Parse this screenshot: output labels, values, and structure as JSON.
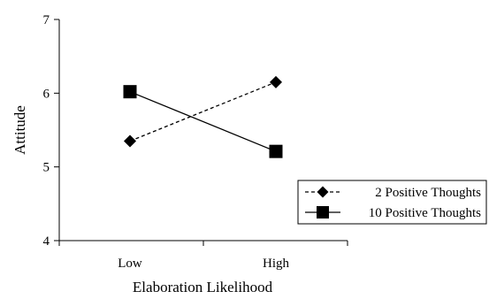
{
  "chart_data": {
    "type": "line",
    "title": "",
    "xlabel": "Elaboration Likelihood",
    "ylabel": "Attitude",
    "categories": [
      "Low",
      "High"
    ],
    "ylim": [
      4,
      7
    ],
    "yticks": [
      "4",
      "5",
      "6",
      "7"
    ],
    "grid": false,
    "legend_position": "right",
    "series": [
      {
        "name": "2 Positive Thoughts",
        "values": [
          5.35,
          6.15
        ],
        "line_style": "dashed",
        "marker": "diamond",
        "color": "#000000"
      },
      {
        "name": "10 Positive Thoughts",
        "values": [
          6.02,
          5.21
        ],
        "line_style": "solid",
        "marker": "square",
        "color": "#000000"
      }
    ]
  }
}
